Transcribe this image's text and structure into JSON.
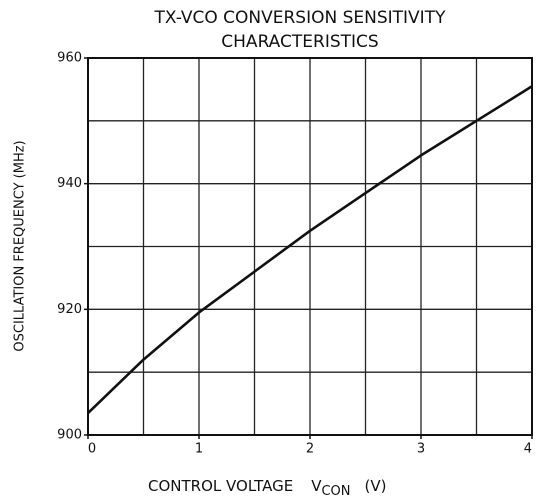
{
  "chart_data": {
    "type": "line",
    "title": [
      "TX-VCO CONVERSION SENSITIVITY",
      "CHARACTERISTICS"
    ],
    "xlabel": [
      "CONTROL VOLTAGE",
      "V",
      "CON",
      "(V)"
    ],
    "ylabel": "OSCILLATION FREQUENCY  (MHz)",
    "x": [
      0,
      0.5,
      1,
      1.5,
      2,
      2.5,
      3,
      3.5,
      4
    ],
    "series": [
      {
        "color": "#111111",
        "values": [
          903.5,
          912,
          919.5,
          926,
          932.5,
          938.5,
          944.5,
          950,
          955.5
        ]
      }
    ],
    "xlim": [
      0,
      4
    ],
    "xticks": [
      0,
      1,
      2,
      3,
      4
    ],
    "ylim": [
      900,
      960
    ],
    "yticks": [
      900,
      920,
      940,
      960
    ],
    "xgrid": [
      0.5,
      1,
      1.5,
      2,
      2.5,
      3,
      3.5
    ],
    "ygrid": [
      910,
      920,
      930,
      940,
      950
    ],
    "grid": true
  }
}
